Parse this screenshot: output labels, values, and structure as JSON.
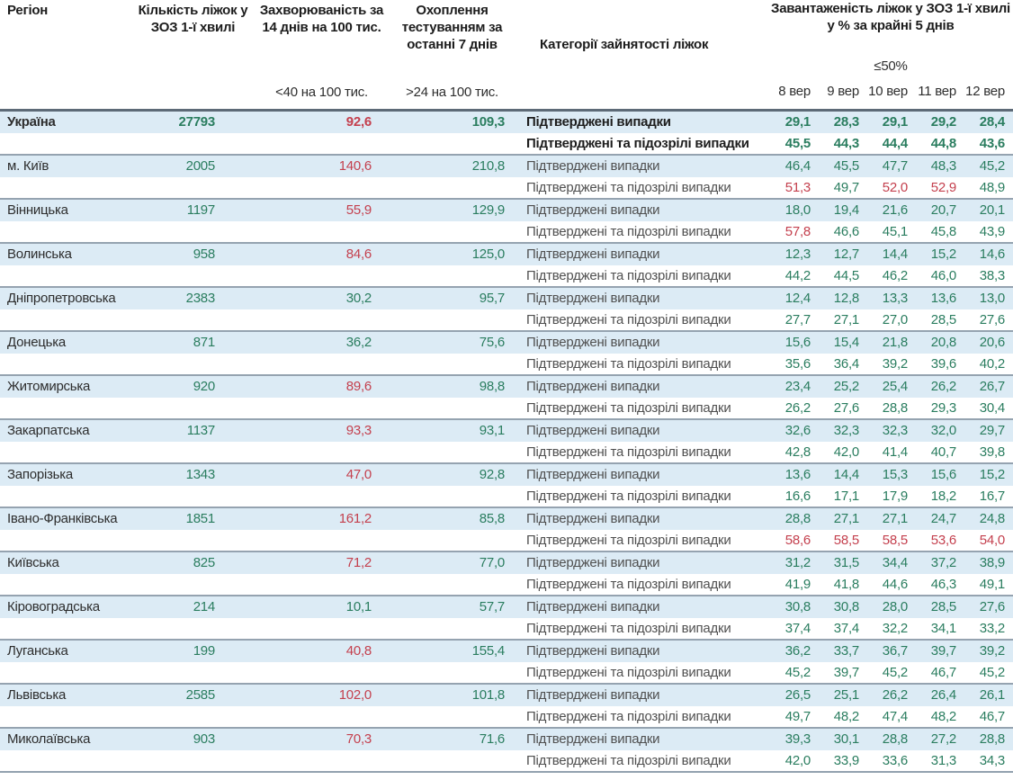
{
  "chart_data": {
    "type": "table",
    "title": "Завантаженість ліжок у ЗОЗ 1-ї хвилі",
    "header": {
      "col_region": "Регіон",
      "col_beds": "Кількість ліжок у ЗОЗ 1-ї хвилі",
      "col_incidence": "Захворюваність за 14 днів на 100 тис.",
      "col_testing": "Охоплення тестуванням за останні 7 днів",
      "col_categories": "Категорії зайнятості ліжок",
      "col_occupancy": "Завантаженість ліжок у ЗОЗ 1-ї хвилі у % за крайні 5 днів",
      "incidence_threshold": "<40 на 100 тис.",
      "testing_threshold": ">24 на 100 тис.",
      "occupancy_threshold": "≤50%",
      "dates": [
        "8 вер",
        "9 вер",
        "10 вер",
        "11 вер",
        "12 вер"
      ]
    },
    "row_labels": {
      "confirmed": "Підтверджені випадки",
      "confirmed_suspected": "Підтверджені та підозрілі випадки"
    },
    "colors": {
      "good": "#2a7d5f",
      "bad": "#c4404e",
      "stripe_row_bg": "#dcebf5"
    },
    "regions": [
      {
        "name": "Україна",
        "bold": true,
        "beds": "27793",
        "incidence": "92,6",
        "incidence_bad": true,
        "testing": "109,3",
        "confirmed": [
          "29,1",
          "28,3",
          "29,1",
          "29,2",
          "28,4"
        ],
        "confirmed_bad": [],
        "suspected": [
          "45,5",
          "44,3",
          "44,4",
          "44,8",
          "43,6"
        ],
        "suspected_bad": []
      },
      {
        "name": "м. Київ",
        "bold": false,
        "beds": "2005",
        "incidence": "140,6",
        "incidence_bad": true,
        "testing": "210,8",
        "confirmed": [
          "46,4",
          "45,5",
          "47,7",
          "48,3",
          "45,2"
        ],
        "confirmed_bad": [],
        "suspected": [
          "51,3",
          "49,7",
          "52,0",
          "52,9",
          "48,9"
        ],
        "suspected_bad": [
          0,
          2,
          3
        ]
      },
      {
        "name": "Вінницька",
        "bold": false,
        "beds": "1197",
        "incidence": "55,9",
        "incidence_bad": true,
        "testing": "129,9",
        "confirmed": [
          "18,0",
          "19,4",
          "21,6",
          "20,7",
          "20,1"
        ],
        "confirmed_bad": [],
        "suspected": [
          "57,8",
          "46,6",
          "45,1",
          "45,8",
          "43,9"
        ],
        "suspected_bad": [
          0
        ]
      },
      {
        "name": "Волинська",
        "bold": false,
        "beds": "958",
        "incidence": "84,6",
        "incidence_bad": true,
        "testing": "125,0",
        "confirmed": [
          "12,3",
          "12,7",
          "14,4",
          "15,2",
          "14,6"
        ],
        "confirmed_bad": [],
        "suspected": [
          "44,2",
          "44,5",
          "46,2",
          "46,0",
          "38,3"
        ],
        "suspected_bad": []
      },
      {
        "name": "Дніпропетровська",
        "bold": false,
        "beds": "2383",
        "incidence": "30,2",
        "incidence_bad": false,
        "testing": "95,7",
        "confirmed": [
          "12,4",
          "12,8",
          "13,3",
          "13,6",
          "13,0"
        ],
        "confirmed_bad": [],
        "suspected": [
          "27,7",
          "27,1",
          "27,0",
          "28,5",
          "27,6"
        ],
        "suspected_bad": []
      },
      {
        "name": "Донецька",
        "bold": false,
        "beds": "871",
        "incidence": "36,2",
        "incidence_bad": false,
        "testing": "75,6",
        "confirmed": [
          "15,6",
          "15,4",
          "21,8",
          "20,8",
          "20,6"
        ],
        "confirmed_bad": [],
        "suspected": [
          "35,6",
          "36,4",
          "39,2",
          "39,6",
          "40,2"
        ],
        "suspected_bad": []
      },
      {
        "name": "Житомирська",
        "bold": false,
        "beds": "920",
        "incidence": "89,6",
        "incidence_bad": true,
        "testing": "98,8",
        "confirmed": [
          "23,4",
          "25,2",
          "25,4",
          "26,2",
          "26,7"
        ],
        "confirmed_bad": [],
        "suspected": [
          "26,2",
          "27,6",
          "28,8",
          "29,3",
          "30,4"
        ],
        "suspected_bad": []
      },
      {
        "name": "Закарпатська",
        "bold": false,
        "beds": "1137",
        "incidence": "93,3",
        "incidence_bad": true,
        "testing": "93,1",
        "confirmed": [
          "32,6",
          "32,3",
          "32,3",
          "32,0",
          "29,7"
        ],
        "confirmed_bad": [],
        "suspected": [
          "42,8",
          "42,0",
          "41,4",
          "40,7",
          "39,8"
        ],
        "suspected_bad": []
      },
      {
        "name": "Запорізька",
        "bold": false,
        "beds": "1343",
        "incidence": "47,0",
        "incidence_bad": true,
        "testing": "92,8",
        "confirmed": [
          "13,6",
          "14,4",
          "15,3",
          "15,6",
          "15,2"
        ],
        "confirmed_bad": [],
        "suspected": [
          "16,6",
          "17,1",
          "17,9",
          "18,2",
          "16,7"
        ],
        "suspected_bad": []
      },
      {
        "name": "Івано-Франківська",
        "bold": false,
        "beds": "1851",
        "incidence": "161,2",
        "incidence_bad": true,
        "testing": "85,8",
        "confirmed": [
          "28,8",
          "27,1",
          "27,1",
          "24,7",
          "24,8"
        ],
        "confirmed_bad": [],
        "suspected": [
          "58,6",
          "58,5",
          "58,5",
          "53,6",
          "54,0"
        ],
        "suspected_bad": [
          0,
          1,
          2,
          3,
          4
        ]
      },
      {
        "name": "Київська",
        "bold": false,
        "beds": "825",
        "incidence": "71,2",
        "incidence_bad": true,
        "testing": "77,0",
        "confirmed": [
          "31,2",
          "31,5",
          "34,4",
          "37,2",
          "38,9"
        ],
        "confirmed_bad": [],
        "suspected": [
          "41,9",
          "41,8",
          "44,6",
          "46,3",
          "49,1"
        ],
        "suspected_bad": []
      },
      {
        "name": "Кіровоградська",
        "bold": false,
        "beds": "214",
        "incidence": "10,1",
        "incidence_bad": false,
        "testing": "57,7",
        "confirmed": [
          "30,8",
          "30,8",
          "28,0",
          "28,5",
          "27,6"
        ],
        "confirmed_bad": [],
        "suspected": [
          "37,4",
          "37,4",
          "32,2",
          "34,1",
          "33,2"
        ],
        "suspected_bad": []
      },
      {
        "name": "Луганська",
        "bold": false,
        "beds": "199",
        "incidence": "40,8",
        "incidence_bad": true,
        "testing": "155,4",
        "confirmed": [
          "36,2",
          "33,7",
          "36,7",
          "39,7",
          "39,2"
        ],
        "confirmed_bad": [],
        "suspected": [
          "45,2",
          "39,7",
          "45,2",
          "46,7",
          "45,2"
        ],
        "suspected_bad": []
      },
      {
        "name": "Львівська",
        "bold": false,
        "beds": "2585",
        "incidence": "102,0",
        "incidence_bad": true,
        "testing": "101,8",
        "confirmed": [
          "26,5",
          "25,1",
          "26,2",
          "26,4",
          "26,1"
        ],
        "confirmed_bad": [],
        "suspected": [
          "49,7",
          "48,2",
          "47,4",
          "48,2",
          "46,7"
        ],
        "suspected_bad": []
      },
      {
        "name": "Миколаївська",
        "bold": false,
        "beds": "903",
        "incidence": "70,3",
        "incidence_bad": true,
        "testing": "71,6",
        "confirmed": [
          "39,3",
          "30,1",
          "28,8",
          "27,2",
          "28,8"
        ],
        "confirmed_bad": [],
        "suspected": [
          "42,0",
          "33,9",
          "33,6",
          "31,3",
          "34,3"
        ],
        "suspected_bad": []
      }
    ]
  }
}
